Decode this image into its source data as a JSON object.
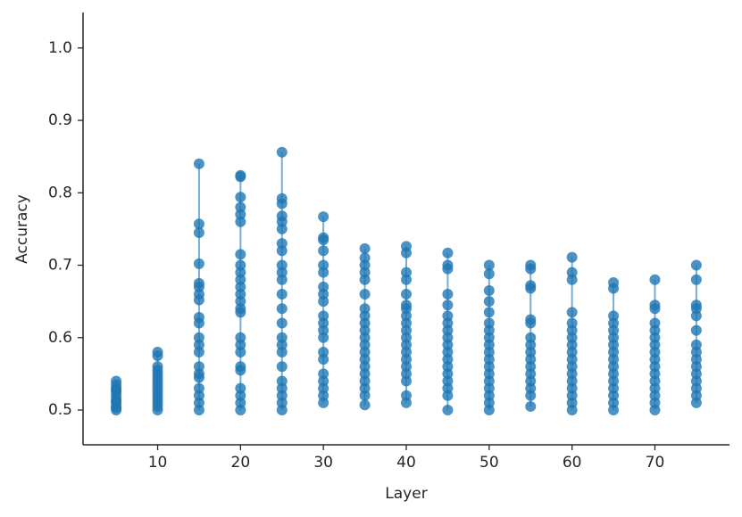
{
  "chart_data": {
    "type": "scatter",
    "xlabel": "Layer",
    "ylabel": "Accuracy",
    "color": "#1f77b4",
    "xlim": [
      1,
      79
    ],
    "ylim": [
      0.452,
      1.049
    ],
    "xticks": [
      10,
      20,
      30,
      40,
      50,
      60,
      70
    ],
    "yticks": [
      0.5,
      0.6,
      0.7,
      0.8,
      0.9,
      {
        "value": 1,
        "label": "1.0"
      }
    ],
    "x": [
      5,
      5,
      5,
      5,
      5,
      5,
      5,
      5,
      5,
      5,
      5,
      5,
      10,
      10,
      10,
      10,
      10,
      10,
      10,
      10,
      10,
      10,
      10,
      10,
      10,
      10,
      10,
      15,
      15,
      15,
      15,
      15,
      15,
      15,
      15,
      15,
      15,
      15,
      15,
      15,
      15,
      15,
      15,
      15,
      15,
      15,
      15,
      20,
      20,
      20,
      20,
      20,
      20,
      20,
      20,
      20,
      20,
      20,
      20,
      20,
      20,
      20,
      20,
      20,
      20,
      20,
      20,
      20,
      20,
      20,
      20,
      25,
      25,
      25,
      25,
      25,
      25,
      25,
      25,
      25,
      25,
      25,
      25,
      25,
      25,
      25,
      25,
      25,
      25,
      25,
      25,
      25,
      25,
      25,
      30,
      30,
      30,
      30,
      30,
      30,
      30,
      30,
      30,
      30,
      30,
      30,
      30,
      30,
      30,
      30,
      30,
      30,
      30,
      30,
      35,
      35,
      35,
      35,
      35,
      35,
      35,
      35,
      35,
      35,
      35,
      35,
      35,
      35,
      35,
      35,
      35,
      35,
      35,
      35,
      40,
      40,
      40,
      40,
      40,
      40,
      40,
      40,
      40,
      40,
      40,
      40,
      40,
      40,
      40,
      40,
      40,
      40,
      40,
      45,
      45,
      45,
      45,
      45,
      45,
      45,
      45,
      45,
      45,
      45,
      45,
      45,
      45,
      45,
      45,
      45,
      45,
      50,
      50,
      50,
      50,
      50,
      50,
      50,
      50,
      50,
      50,
      50,
      50,
      50,
      50,
      50,
      50,
      50,
      50,
      55,
      55,
      55,
      55,
      55,
      55,
      55,
      55,
      55,
      55,
      55,
      55,
      55,
      55,
      55,
      55,
      60,
      60,
      60,
      60,
      60,
      60,
      60,
      60,
      60,
      60,
      60,
      60,
      60,
      60,
      60,
      60,
      60,
      65,
      65,
      65,
      65,
      65,
      65,
      65,
      65,
      65,
      65,
      65,
      65,
      65,
      65,
      65,
      65,
      70,
      70,
      70,
      70,
      70,
      70,
      70,
      70,
      70,
      70,
      70,
      70,
      70,
      70,
      70,
      70,
      75,
      75,
      75,
      75,
      75,
      75,
      75,
      75,
      75,
      75,
      75,
      75,
      75,
      75,
      75
    ],
    "values": [
      0.54,
      0.535,
      0.53,
      0.528,
      0.525,
      0.52,
      0.515,
      0.512,
      0.51,
      0.505,
      0.503,
      0.5,
      0.58,
      0.575,
      0.56,
      0.555,
      0.55,
      0.545,
      0.54,
      0.535,
      0.53,
      0.525,
      0.52,
      0.515,
      0.51,
      0.505,
      0.5,
      0.84,
      0.757,
      0.745,
      0.702,
      0.675,
      0.67,
      0.66,
      0.652,
      0.628,
      0.62,
      0.6,
      0.59,
      0.58,
      0.56,
      0.55,
      0.545,
      0.53,
      0.52,
      0.51,
      0.5,
      0.824,
      0.822,
      0.794,
      0.78,
      0.77,
      0.76,
      0.715,
      0.7,
      0.69,
      0.68,
      0.67,
      0.66,
      0.65,
      0.64,
      0.635,
      0.6,
      0.59,
      0.58,
      0.56,
      0.555,
      0.53,
      0.52,
      0.51,
      0.5,
      0.856,
      0.792,
      0.785,
      0.768,
      0.76,
      0.75,
      0.73,
      0.72,
      0.7,
      0.69,
      0.68,
      0.66,
      0.64,
      0.62,
      0.6,
      0.59,
      0.58,
      0.56,
      0.54,
      0.53,
      0.52,
      0.51,
      0.5,
      0.767,
      0.738,
      0.735,
      0.72,
      0.7,
      0.69,
      0.67,
      0.66,
      0.65,
      0.63,
      0.62,
      0.61,
      0.6,
      0.58,
      0.57,
      0.55,
      0.54,
      0.53,
      0.52,
      0.51,
      0.723,
      0.71,
      0.7,
      0.69,
      0.68,
      0.66,
      0.64,
      0.63,
      0.62,
      0.61,
      0.6,
      0.59,
      0.58,
      0.57,
      0.56,
      0.55,
      0.54,
      0.53,
      0.52,
      0.507,
      0.726,
      0.717,
      0.69,
      0.68,
      0.66,
      0.645,
      0.64,
      0.63,
      0.62,
      0.61,
      0.6,
      0.59,
      0.58,
      0.57,
      0.56,
      0.55,
      0.54,
      0.52,
      0.51,
      0.717,
      0.7,
      0.695,
      0.66,
      0.645,
      0.63,
      0.62,
      0.61,
      0.6,
      0.59,
      0.58,
      0.57,
      0.56,
      0.55,
      0.54,
      0.53,
      0.52,
      0.5,
      0.7,
      0.688,
      0.665,
      0.65,
      0.635,
      0.62,
      0.61,
      0.6,
      0.59,
      0.58,
      0.57,
      0.56,
      0.55,
      0.54,
      0.53,
      0.52,
      0.51,
      0.5,
      0.7,
      0.695,
      0.672,
      0.668,
      0.625,
      0.62,
      0.6,
      0.59,
      0.58,
      0.57,
      0.56,
      0.55,
      0.54,
      0.53,
      0.52,
      0.505,
      0.711,
      0.69,
      0.68,
      0.635,
      0.62,
      0.61,
      0.6,
      0.59,
      0.58,
      0.57,
      0.56,
      0.55,
      0.54,
      0.53,
      0.52,
      0.51,
      0.5,
      0.676,
      0.668,
      0.63,
      0.62,
      0.61,
      0.6,
      0.59,
      0.58,
      0.57,
      0.56,
      0.55,
      0.54,
      0.53,
      0.52,
      0.51,
      0.5,
      0.68,
      0.645,
      0.64,
      0.62,
      0.61,
      0.6,
      0.59,
      0.58,
      0.57,
      0.56,
      0.55,
      0.54,
      0.53,
      0.52,
      0.51,
      0.5,
      0.7,
      0.68,
      0.645,
      0.64,
      0.63,
      0.61,
      0.59,
      0.58,
      0.57,
      0.56,
      0.55,
      0.54,
      0.53,
      0.52,
      0.51
    ]
  }
}
